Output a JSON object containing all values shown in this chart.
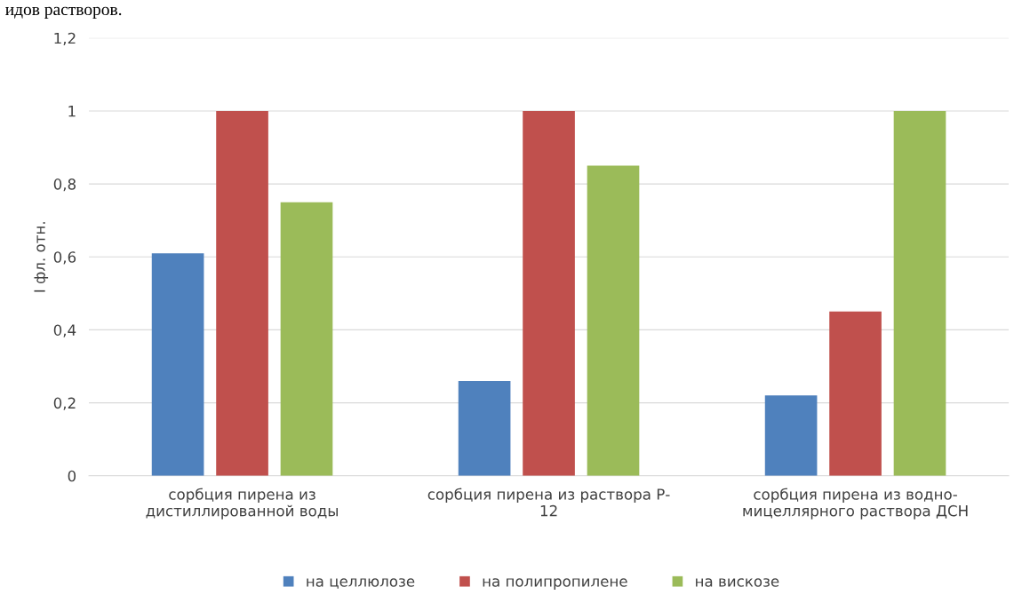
{
  "chart_data": {
    "type": "bar",
    "ylabel": "I фл. отн.",
    "annotations": [
      "идов растворов."
    ],
    "categories": [
      "сорбция пирена из\nдистиллированной воды",
      "сорбция пирена из раствора Р-\n12",
      "сорбция пирена из водно-\nмицеллярного раствора ДСН"
    ],
    "series": [
      {
        "name": "на целлюлозе",
        "color": "#4f81bd",
        "values": [
          0.61,
          0.26,
          0.22
        ]
      },
      {
        "name": "на полипропилене",
        "color": "#c0504d",
        "values": [
          1,
          1,
          0.45
        ]
      },
      {
        "name": "на вискозе",
        "color": "#9bbb59",
        "values": [
          0.75,
          0.85,
          1
        ]
      }
    ],
    "ylim": [
      0,
      1.2
    ],
    "yticks": [
      0,
      {
        "value": 0.2,
        "label": "0,2"
      },
      {
        "value": 0.4,
        "label": "0,4"
      },
      {
        "value": 0.6,
        "label": "0,6"
      },
      {
        "value": 0.8,
        "label": "0,8"
      },
      1,
      {
        "value": 1.2,
        "label": "1,2"
      }
    ],
    "grid": "y",
    "legend": "bottom"
  }
}
